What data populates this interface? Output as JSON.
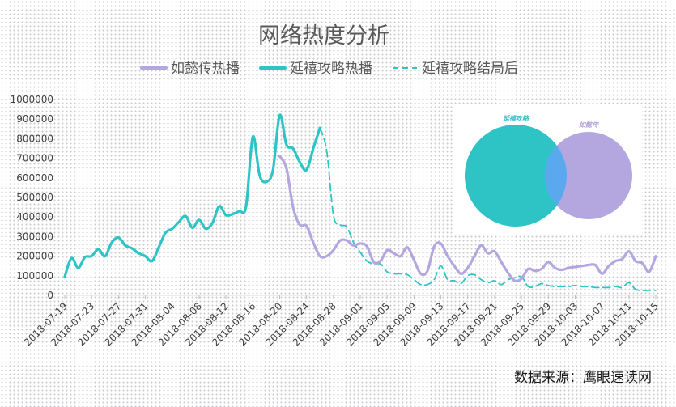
{
  "chart_data": {
    "type": "line",
    "title": "网络热度分析",
    "source": "数据来源：鹰眼速读网",
    "ylim": [
      0,
      1000000
    ],
    "yticks": [
      0,
      100000,
      200000,
      300000,
      400000,
      500000,
      600000,
      700000,
      800000,
      900000,
      1000000
    ],
    "xlim": [
      "2018-07-19",
      "2018-10-15"
    ],
    "xticks": [
      "2018-07-19",
      "2018-07-23",
      "2018-07-27",
      "2018-07-31",
      "2018-08-04",
      "2018-08-08",
      "2018-08-12",
      "2018-08-16",
      "2018-08-20",
      "2018-08-24",
      "2018-08-28",
      "2018-09-01",
      "2018-09-05",
      "2018-09-09",
      "2018-09-13",
      "2018-09-17",
      "2018-09-21",
      "2018-09-25",
      "2018-09-29",
      "2018-10-03",
      "2018-10-07",
      "2018-10-11",
      "2018-10-15"
    ],
    "grid": false,
    "legend": "top",
    "series": [
      {
        "name": "如懿传热播",
        "color": "#b4a7e0",
        "style": "solid",
        "points": [
          [
            "2018-08-20",
            710000
          ],
          [
            "2018-08-21",
            650000
          ],
          [
            "2018-08-22",
            450000
          ],
          [
            "2018-08-23",
            360000
          ],
          [
            "2018-08-24",
            355000
          ],
          [
            "2018-08-25",
            270000
          ],
          [
            "2018-08-26",
            200000
          ],
          [
            "2018-08-27",
            200000
          ],
          [
            "2018-08-28",
            230000
          ],
          [
            "2018-08-29",
            280000
          ],
          [
            "2018-08-30",
            280000
          ],
          [
            "2018-08-31",
            255000
          ],
          [
            "2018-09-01",
            265000
          ],
          [
            "2018-09-02",
            250000
          ],
          [
            "2018-09-03",
            170000
          ],
          [
            "2018-09-04",
            175000
          ],
          [
            "2018-09-05",
            230000
          ],
          [
            "2018-09-06",
            215000
          ],
          [
            "2018-09-07",
            200000
          ],
          [
            "2018-09-08",
            245000
          ],
          [
            "2018-09-09",
            180000
          ],
          [
            "2018-09-10",
            110000
          ],
          [
            "2018-09-11",
            125000
          ],
          [
            "2018-09-12",
            250000
          ],
          [
            "2018-09-13",
            265000
          ],
          [
            "2018-09-14",
            200000
          ],
          [
            "2018-09-15",
            150000
          ],
          [
            "2018-09-16",
            110000
          ],
          [
            "2018-09-17",
            140000
          ],
          [
            "2018-09-18",
            200000
          ],
          [
            "2018-09-19",
            255000
          ],
          [
            "2018-09-20",
            215000
          ],
          [
            "2018-09-21",
            225000
          ],
          [
            "2018-09-22",
            170000
          ],
          [
            "2018-09-23",
            115000
          ],
          [
            "2018-09-24",
            75000
          ],
          [
            "2018-09-25",
            85000
          ],
          [
            "2018-09-26",
            135000
          ],
          [
            "2018-09-27",
            125000
          ],
          [
            "2018-09-28",
            135000
          ],
          [
            "2018-09-29",
            170000
          ],
          [
            "2018-09-30",
            140000
          ],
          [
            "2018-10-01",
            130000
          ],
          [
            "2018-10-02",
            140000
          ],
          [
            "2018-10-03",
            145000
          ],
          [
            "2018-10-04",
            150000
          ],
          [
            "2018-10-05",
            155000
          ],
          [
            "2018-10-06",
            155000
          ],
          [
            "2018-10-07",
            110000
          ],
          [
            "2018-10-08",
            150000
          ],
          [
            "2018-10-09",
            175000
          ],
          [
            "2018-10-10",
            185000
          ],
          [
            "2018-10-11",
            225000
          ],
          [
            "2018-10-12",
            175000
          ],
          [
            "2018-10-13",
            165000
          ],
          [
            "2018-10-14",
            120000
          ],
          [
            "2018-10-15",
            200000
          ]
        ]
      },
      {
        "name": "延禧攻略热播",
        "color": "#2ec4c6",
        "style": "solid",
        "points": [
          [
            "2018-07-19",
            95000
          ],
          [
            "2018-07-20",
            190000
          ],
          [
            "2018-07-21",
            140000
          ],
          [
            "2018-07-22",
            195000
          ],
          [
            "2018-07-23",
            200000
          ],
          [
            "2018-07-24",
            235000
          ],
          [
            "2018-07-25",
            200000
          ],
          [
            "2018-07-26",
            270000
          ],
          [
            "2018-07-27",
            295000
          ],
          [
            "2018-07-28",
            255000
          ],
          [
            "2018-07-29",
            240000
          ],
          [
            "2018-07-30",
            215000
          ],
          [
            "2018-07-31",
            200000
          ],
          [
            "2018-08-01",
            175000
          ],
          [
            "2018-08-02",
            245000
          ],
          [
            "2018-08-03",
            320000
          ],
          [
            "2018-08-04",
            340000
          ],
          [
            "2018-08-05",
            375000
          ],
          [
            "2018-08-06",
            405000
          ],
          [
            "2018-08-07",
            345000
          ],
          [
            "2018-08-08",
            385000
          ],
          [
            "2018-08-09",
            340000
          ],
          [
            "2018-08-10",
            370000
          ],
          [
            "2018-08-11",
            455000
          ],
          [
            "2018-08-12",
            410000
          ],
          [
            "2018-08-13",
            415000
          ],
          [
            "2018-08-14",
            430000
          ],
          [
            "2018-08-15",
            455000
          ],
          [
            "2018-08-16",
            810000
          ],
          [
            "2018-08-17",
            615000
          ],
          [
            "2018-08-18",
            580000
          ],
          [
            "2018-08-19",
            640000
          ],
          [
            "2018-08-20",
            920000
          ],
          [
            "2018-08-21",
            770000
          ],
          [
            "2018-08-22",
            750000
          ],
          [
            "2018-08-23",
            680000
          ],
          [
            "2018-08-24",
            640000
          ],
          [
            "2018-08-25",
            750000
          ],
          [
            "2018-08-26",
            855000
          ]
        ]
      },
      {
        "name": "延禧攻略结局后",
        "color": "#2ec4c6",
        "style": "dashed",
        "points": [
          [
            "2018-08-26",
            855000
          ],
          [
            "2018-08-27",
            740000
          ],
          [
            "2018-08-28",
            410000
          ],
          [
            "2018-08-29",
            360000
          ],
          [
            "2018-08-30",
            350000
          ],
          [
            "2018-08-31",
            270000
          ],
          [
            "2018-09-01",
            220000
          ],
          [
            "2018-09-02",
            175000
          ],
          [
            "2018-09-03",
            160000
          ],
          [
            "2018-09-04",
            160000
          ],
          [
            "2018-09-05",
            120000
          ],
          [
            "2018-09-06",
            110000
          ],
          [
            "2018-09-07",
            110000
          ],
          [
            "2018-09-08",
            105000
          ],
          [
            "2018-09-09",
            80000
          ],
          [
            "2018-09-10",
            55000
          ],
          [
            "2018-09-11",
            55000
          ],
          [
            "2018-09-12",
            80000
          ],
          [
            "2018-09-13",
            150000
          ],
          [
            "2018-09-14",
            80000
          ],
          [
            "2018-09-15",
            75000
          ],
          [
            "2018-09-16",
            60000
          ],
          [
            "2018-09-17",
            100000
          ],
          [
            "2018-09-18",
            105000
          ],
          [
            "2018-09-19",
            80000
          ],
          [
            "2018-09-20",
            65000
          ],
          [
            "2018-09-21",
            75000
          ],
          [
            "2018-09-22",
            55000
          ],
          [
            "2018-09-23",
            80000
          ],
          [
            "2018-09-24",
            90000
          ],
          [
            "2018-09-25",
            95000
          ],
          [
            "2018-09-26",
            45000
          ],
          [
            "2018-09-27",
            45000
          ],
          [
            "2018-09-28",
            60000
          ],
          [
            "2018-09-29",
            50000
          ],
          [
            "2018-09-30",
            45000
          ],
          [
            "2018-10-01",
            45000
          ],
          [
            "2018-10-02",
            45000
          ],
          [
            "2018-10-03",
            50000
          ],
          [
            "2018-10-04",
            45000
          ],
          [
            "2018-10-05",
            45000
          ],
          [
            "2018-10-06",
            40000
          ],
          [
            "2018-10-07",
            40000
          ],
          [
            "2018-10-08",
            40000
          ],
          [
            "2018-10-09",
            45000
          ],
          [
            "2018-10-10",
            40000
          ],
          [
            "2018-10-11",
            65000
          ],
          [
            "2018-10-12",
            30000
          ],
          [
            "2018-10-13",
            25000
          ],
          [
            "2018-10-14",
            25000
          ],
          [
            "2018-10-15",
            25000
          ]
        ]
      }
    ],
    "inset": {
      "type": "venn",
      "sets": [
        {
          "label": "延禧攻略",
          "color": "#2ec4c6"
        },
        {
          "label": "如懿传",
          "color": "#b4a7e0"
        }
      ],
      "overlap_color": "#5aa8ee"
    }
  }
}
